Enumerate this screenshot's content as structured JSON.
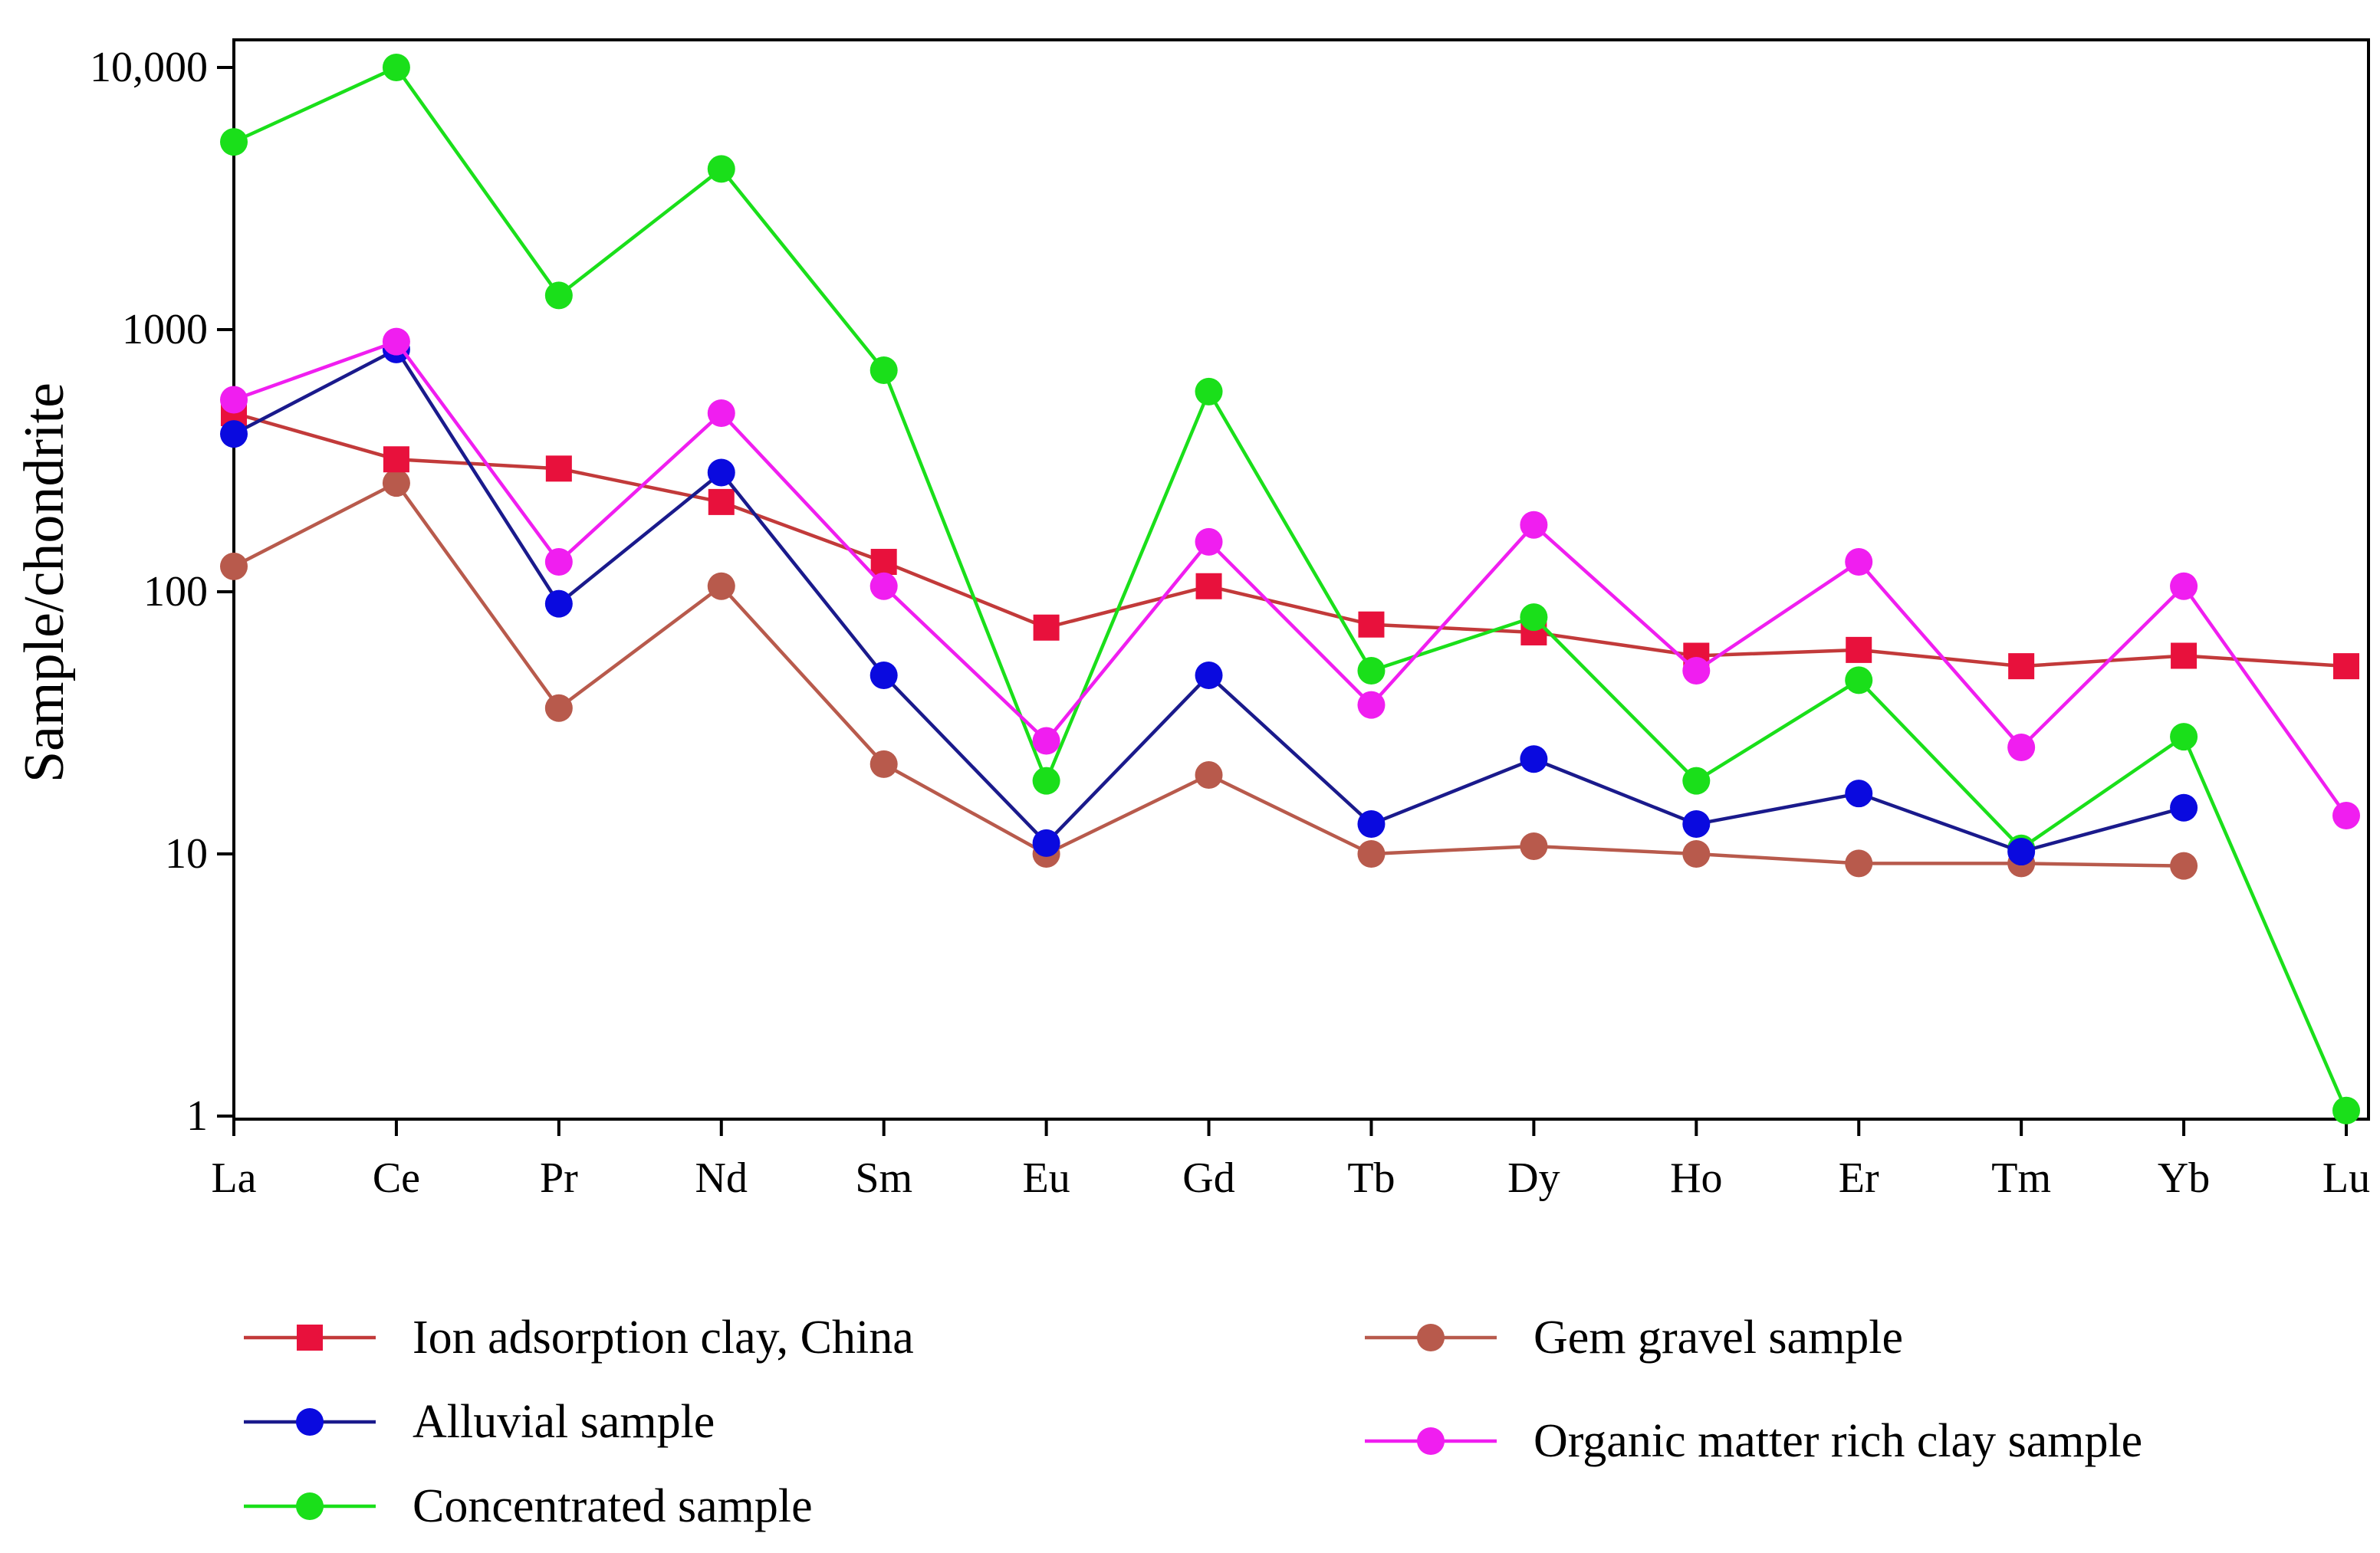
{
  "chart_data": {
    "type": "line",
    "yscale": "log",
    "ylim": [
      1,
      10000
    ],
    "ylabel": "Sample/chondrite",
    "xlabel": "",
    "title": "",
    "grid": false,
    "legend_placement": "bottom",
    "categories": [
      "La",
      "Ce",
      "Pr",
      "Nd",
      "Sm",
      "Eu",
      "Gd",
      "Tb",
      "Dy",
      "Ho",
      "Er",
      "Tm",
      "Yb",
      "Lu"
    ],
    "y_ticks": [
      1,
      10,
      100,
      1000,
      10000
    ],
    "y_tick_labels": [
      "1",
      "10",
      "100",
      "1000",
      "10,000"
    ],
    "series": [
      {
        "name": "Gem gravel sample",
        "color": "#b85a4c",
        "marker": "circle",
        "values": [
          125,
          260,
          36,
          105,
          22,
          10,
          20,
          10,
          10.7,
          10,
          9.2,
          9.2,
          9,
          null
        ]
      },
      {
        "name": "Ion adsorption clay, China",
        "color": "#e8113c",
        "line_color": "#c23a3a",
        "marker": "square",
        "values": [
          480,
          320,
          295,
          220,
          130,
          73,
          105,
          75,
          70,
          57,
          60,
          52,
          57,
          52
        ]
      },
      {
        "name": "Concentrated sample",
        "color": "#1adf1a",
        "marker": "circle",
        "values": [
          5200,
          10000,
          1350,
          4100,
          700,
          19,
          580,
          50,
          80,
          19,
          46,
          10.5,
          28,
          1.05
        ]
      },
      {
        "name": "Alluvial sample",
        "color": "#0a0adf",
        "line_color": "#1a1a8c",
        "marker": "circle",
        "values": [
          400,
          840,
          90,
          285,
          48,
          11,
          48,
          13,
          23,
          13,
          17,
          10.2,
          15,
          null
        ]
      },
      {
        "name": "Organic matter rich clay sample",
        "color": "#f01ef0",
        "marker": "circle",
        "values": [
          540,
          900,
          130,
          480,
          105,
          27,
          155,
          37,
          180,
          50,
          130,
          25.5,
          105,
          14
        ]
      }
    ]
  },
  "legend": {
    "items": [
      {
        "label": "Ion adsorption clay, China",
        "series_index": 1
      },
      {
        "label": "Alluvial sample",
        "series_index": 3
      },
      {
        "label": "Concentrated sample",
        "series_index": 2
      },
      {
        "label": "Gem gravel sample",
        "series_index": 0
      },
      {
        "label": "Organic matter rich clay sample",
        "series_index": 4
      }
    ]
  }
}
